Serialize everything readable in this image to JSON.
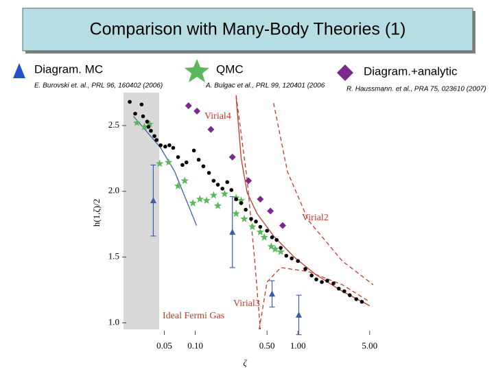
{
  "title": "Comparison with Many-Body Theories (1)",
  "chart_data": {
    "type": "scatter",
    "x_label": "ζ",
    "y_label": "h(1,ζ)/2",
    "log_x": true,
    "xlim": [
      0.02,
      5.5
    ],
    "ylim": [
      0.95,
      2.75
    ],
    "xticks": [
      {
        "value": 0.05,
        "label": "0.05"
      },
      {
        "value": 0.1,
        "label": "0.10"
      },
      {
        "value": 0.5,
        "label": "0.50"
      },
      {
        "value": 1,
        "label": "1.00"
      },
      {
        "value": 5,
        "label": "5.00"
      }
    ],
    "yticks": [
      2.5,
      {
        "value": 2,
        "label": "2.0"
      },
      1.5,
      {
        "value": 1,
        "label": "1.0"
      }
    ],
    "annotations": [
      "Virial4",
      "Virial2",
      "Virial3",
      "Ideal Fermi Gas"
    ],
    "series": [
      {
        "name": "Diagram. MC",
        "reference": "E. Burovski et. al., PRL 96, 160402 (2006)",
        "marker": "triangle",
        "color": "#3a5fa8",
        "x": [
          0.039,
          0.23,
          0.56,
          1.02
        ],
        "values": [
          1.93,
          1.69,
          1.22,
          1.06
        ],
        "errors": [
          0.27,
          0.27,
          0.1,
          0.15
        ]
      },
      {
        "name": "QMC",
        "reference": "A. Bulgac et al., PRL 99, 120401 (2006",
        "marker": "star",
        "color": "#5cb85c",
        "x": [
          0.027,
          0.032,
          0.036,
          0.045,
          0.055,
          0.068,
          0.079,
          0.095,
          0.111,
          0.129,
          0.151,
          0.166,
          0.193,
          0.25,
          0.28,
          0.25,
          0.3,
          0.36,
          0.43,
          0.47,
          0.55,
          0.6,
          0.68
        ],
        "values": [
          2.52,
          2.49,
          2.51,
          2.21,
          2.22,
          2.04,
          2.08,
          1.91,
          1.94,
          1.93,
          1.97,
          1.89,
          1.98,
          1.95,
          1.93,
          1.83,
          1.79,
          1.73,
          1.69,
          1.65,
          1.58,
          1.56,
          1.54
        ]
      },
      {
        "name": "Diagram.+analytic",
        "reference": "R. Haussmann. et al., PRA 75, 023610 (2007)",
        "marker": "diamond",
        "color": "#7b2a8c",
        "x": [
          0.086,
          0.104,
          0.142,
          0.23,
          0.33,
          0.43,
          0.54,
          0.71
        ],
        "values": [
          2.65,
          2.61,
          2.47,
          2.26,
          2.08,
          1.94,
          1.85,
          1.74
        ]
      },
      {
        "marker": "dot",
        "color": "#000000",
        "x": [
          0.023,
          0.026,
          0.03,
          0.031,
          0.034,
          0.035,
          0.037,
          0.04,
          0.042,
          0.046,
          0.051,
          0.056,
          0.061,
          0.068,
          0.075,
          0.082,
          0.097,
          0.108,
          0.12,
          0.136,
          0.151,
          0.166,
          0.184,
          0.205,
          0.225,
          0.25,
          0.28,
          0.31,
          0.35,
          0.39,
          0.43,
          0.5,
          0.56,
          0.62,
          0.68,
          0.77,
          0.87,
          1.0,
          1.18,
          1.36,
          1.51,
          1.71,
          1.93,
          2.22,
          2.5,
          2.83,
          3.2,
          3.7,
          4.2
        ],
        "values": [
          2.68,
          2.59,
          2.66,
          2.57,
          2.53,
          2.49,
          2.46,
          2.42,
          2.39,
          2.35,
          2.34,
          2.35,
          2.33,
          2.26,
          2.2,
          2.22,
          2.31,
          2.24,
          2.19,
          2.14,
          2.08,
          2.05,
          2.02,
          2.07,
          2.01,
          1.94,
          1.91,
          1.86,
          1.79,
          1.77,
          1.73,
          1.7,
          1.65,
          1.63,
          1.57,
          1.51,
          1.49,
          1.47,
          1.41,
          1.36,
          1.33,
          1.31,
          1.32,
          1.3,
          1.26,
          1.24,
          1.21,
          1.18,
          1.16
        ]
      },
      {
        "line": "solid",
        "color": "#3a5fa8",
        "x": [
          0.025,
          0.034,
          0.046,
          0.063,
          0.079,
          0.103
        ],
        "values": [
          2.57,
          2.45,
          2.33,
          2.15,
          1.96,
          1.74
        ]
      },
      {
        "line": "solid",
        "color": "#c0392b",
        "x": [
          0.25,
          0.28,
          0.32,
          0.4,
          0.58,
          0.92,
          1.47,
          2.7,
          5.0
        ],
        "values": [
          2.72,
          2.25,
          1.99,
          1.83,
          1.66,
          1.5,
          1.37,
          1.24,
          1.13
        ]
      },
      {
        "line": "dashed",
        "color": "#c0392b",
        "x": [
          0.58,
          0.79,
          1.26,
          2.7,
          5.4
        ],
        "values": [
          2.67,
          2.15,
          1.78,
          1.47,
          1.29
        ]
      },
      {
        "line": "dashed",
        "color": "#c0392b",
        "x": [
          0.25,
          0.32,
          0.38,
          0.43
        ],
        "values": [
          2.73,
          2.09,
          1.47,
          0.95
        ]
      },
      {
        "line": "dashed",
        "color": "#c0392b",
        "x": [
          0.42,
          0.5,
          0.68,
          1.26,
          2.7,
          5.0
        ],
        "values": [
          0.95,
          1.31,
          1.42,
          1.39,
          1.29,
          1.16
        ]
      }
    ]
  }
}
